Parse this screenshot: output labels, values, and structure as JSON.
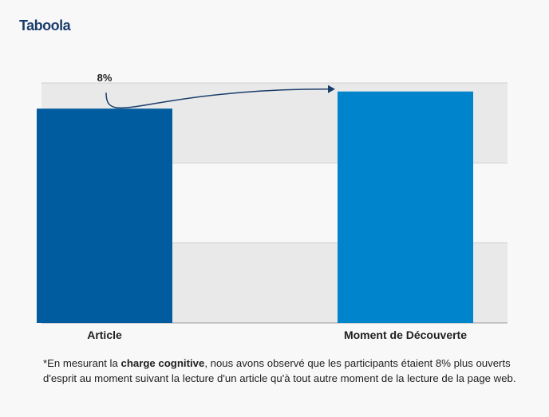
{
  "brand": {
    "logo_text": "Taboola"
  },
  "chart_data": {
    "type": "bar",
    "categories": [
      "Article",
      "Moment de Découverte"
    ],
    "values": [
      100,
      108
    ],
    "colors": [
      "#005c9e",
      "#0085cd"
    ],
    "ylim": [
      0,
      112
    ],
    "annotation": {
      "text": "8%",
      "from": "Article",
      "to": "Moment de Découverte"
    },
    "grid": true,
    "grid_bands": [
      "#e9e9e9",
      "#f8f8f8"
    ]
  },
  "footnote": {
    "prefix": "*En mesurant la ",
    "bold": "charge cognitive",
    "suffix": ", nous avons observé que les participants étaient 8% plus ouverts d'esprit au moment suivant la lecture d'un article qu'à tout autre moment de la lecture de la page web."
  }
}
